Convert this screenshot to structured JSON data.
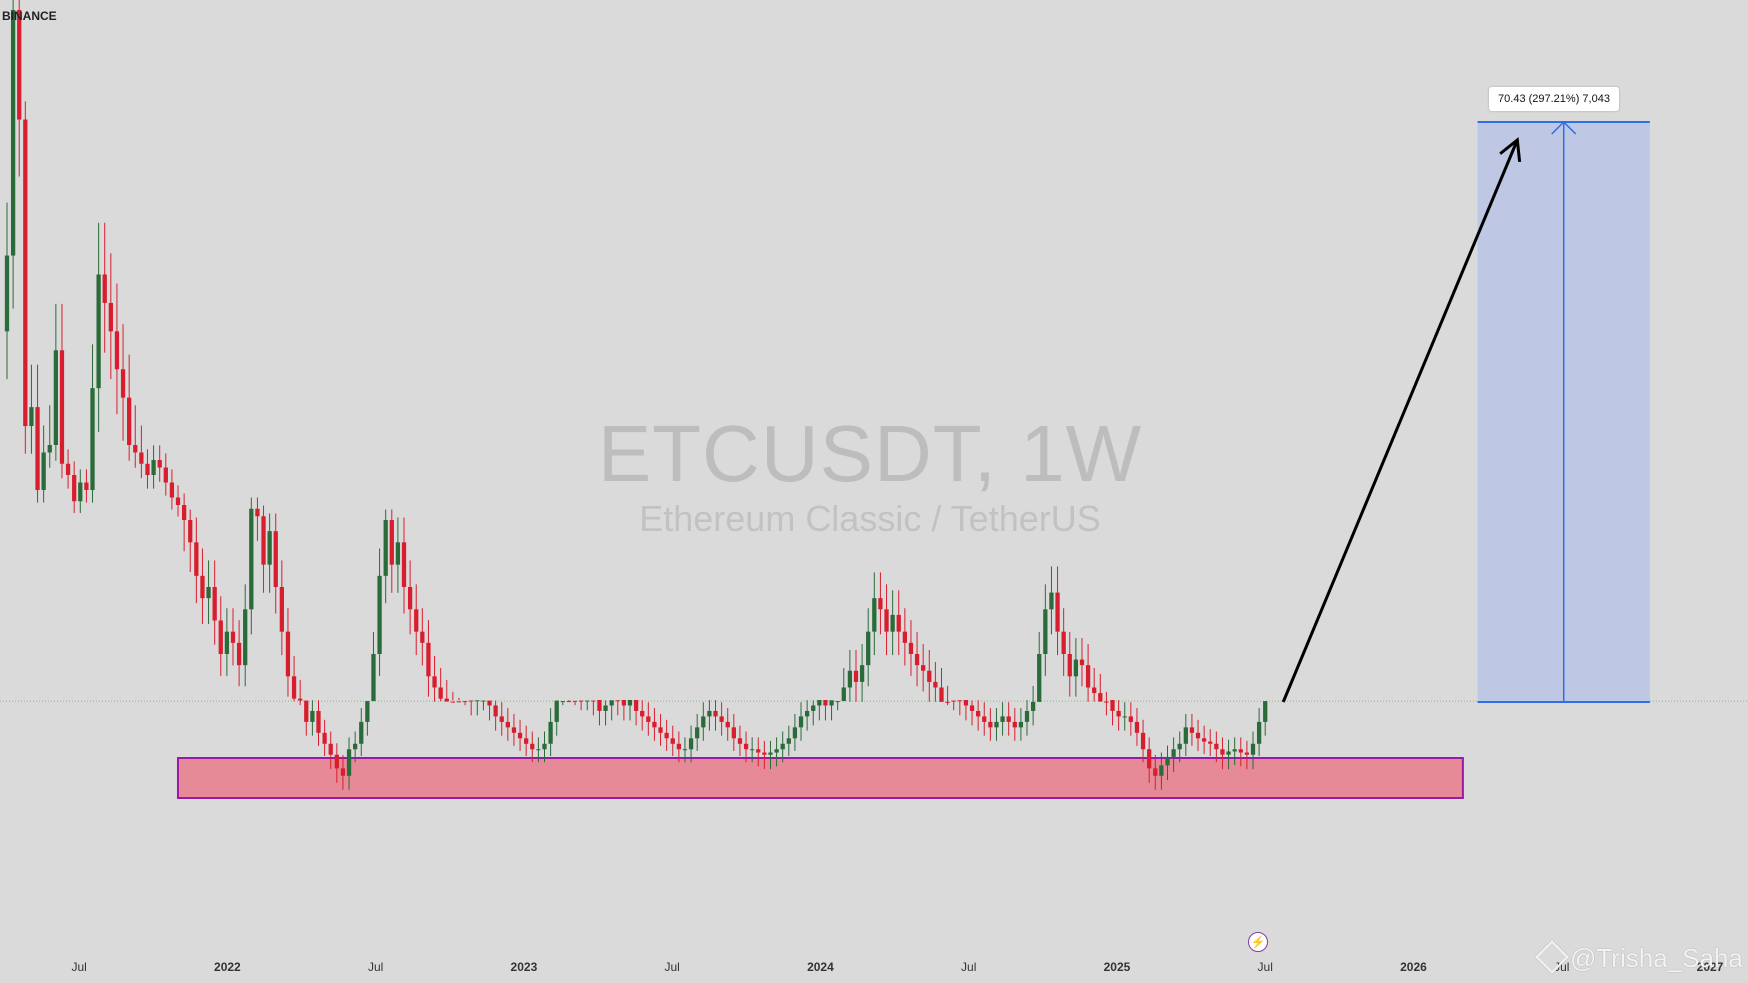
{
  "header": {
    "exchange": "BINANCE"
  },
  "watermark": {
    "title": "ETCUSDT, 1W",
    "subtitle": "Ethereum Classic / TetherUS"
  },
  "measure": {
    "label": "70.43 (297.21%) 7,043"
  },
  "signature": {
    "text": "@Trisha_Saha"
  },
  "icons": {
    "flash": "lightning-icon",
    "signature": "binance-logo-icon"
  },
  "colors": {
    "up": "#2a6b3a",
    "down": "#d81e2e",
    "support_fill": "#e68a98",
    "support_border": "#9a1aa8",
    "measure_fill": "#bec7e3",
    "measure_line": "#2f6ee8",
    "price_line": "#7fbf7f"
  },
  "x_axis": [
    {
      "label": "Jul",
      "year": false
    },
    {
      "label": "2022",
      "year": true
    },
    {
      "label": "Jul",
      "year": false
    },
    {
      "label": "2023",
      "year": true
    },
    {
      "label": "Jul",
      "year": false
    },
    {
      "label": "2024",
      "year": true
    },
    {
      "label": "Jul",
      "year": false
    },
    {
      "label": "2025",
      "year": true
    },
    {
      "label": "Jul",
      "year": false
    },
    {
      "label": "2026",
      "year": true
    },
    {
      "label": "Jul",
      "year": false
    },
    {
      "label": "2027",
      "year": true
    }
  ],
  "chart_data": {
    "type": "candlestick",
    "title": "ETCUSDT, 1W",
    "subtitle": "Ethereum Classic / TetherUS",
    "x_start": "2021-04",
    "x_end": "2027-01",
    "ylim": [
      0,
      200
    ],
    "support_zone": {
      "from": "2021-11",
      "to": "2026-03",
      "low": 12.0,
      "high": 14.7
    },
    "target": {
      "price": 94.1,
      "change": 70.43,
      "change_pct": "297.21%",
      "ticks": "7,043"
    },
    "projection_arrow": {
      "from": [
        "2025-07",
        23.7
      ],
      "to": [
        "2026-05",
        94.1
      ]
    },
    "closes": [
      80.0,
      135.0,
      95.0,
      62.0,
      64.0,
      48.0,
      58.0,
      60.0,
      70.0,
      55.0,
      52.0,
      45.0,
      50.0,
      48.0,
      66.0,
      78.0,
      75.0,
      72.0,
      68.0,
      65.0,
      60.0,
      58.0,
      55.0,
      52.0,
      56.0,
      54.0,
      50.0,
      46.0,
      44.0,
      40.0,
      38.0,
      35.0,
      33.0,
      34.0,
      31.0,
      28.0,
      30.0,
      29.0,
      27.0,
      32.0,
      43.0,
      41.0,
      36.0,
      39.0,
      34.0,
      30.0,
      26.0,
      24.0,
      21.0,
      18.0,
      19.0,
      17.0,
      16.0,
      15.0,
      14.0,
      13.5,
      15.5,
      16.0,
      18.0,
      22.0,
      28.0,
      35.0,
      40.0,
      36.0,
      38.0,
      34.0,
      32.0,
      30.0,
      29.0,
      26.0,
      25.0,
      24.0,
      23.0,
      22.5,
      22.0,
      21.0,
      20.0,
      20.5,
      21.0,
      19.5,
      18.5,
      18.0,
      17.5,
      17.0,
      16.5,
      16.0,
      15.5,
      15.5,
      16.0,
      18.0,
      21.0,
      22.0,
      21.5,
      21.0,
      20.5,
      21.0,
      20.0,
      19.0,
      19.5,
      20.5,
      20.0,
      19.5,
      20.0,
      19.0,
      18.5,
      18.0,
      17.5,
      17.0,
      16.5,
      16.0,
      15.5,
      15.5,
      16.5,
      17.5,
      18.5,
      19.0,
      18.5,
      18.0,
      17.5,
      16.5,
      16.0,
      15.5,
      15.5,
      15.2,
      15.0,
      15.2,
      15.5,
      16.0,
      16.5,
      17.5,
      18.5,
      19.0,
      19.5,
      20.0,
      19.5,
      20.5,
      22.0,
      25.0,
      26.5,
      25.5,
      27.0,
      30.0,
      33.0,
      32.0,
      30.0,
      31.5,
      30.0,
      29.0,
      28.0,
      27.0,
      26.5,
      25.5,
      25.0,
      23.5,
      21.0,
      20.5,
      20.0,
      19.5,
      19.0,
      18.5,
      18.0,
      17.5,
      18.0,
      18.5,
      18.0,
      17.5,
      18.0,
      19.0,
      23.5,
      28.0,
      32.0,
      33.5,
      30.0,
      28.0,
      26.0,
      27.5,
      27.0,
      25.0,
      24.5,
      23.0,
      20.0,
      19.0,
      18.5,
      18.5,
      18.0,
      17.0,
      15.5,
      14.0,
      13.5,
      14.2,
      14.8,
      15.5,
      16.0,
      17.5,
      17.0,
      16.5,
      16.2,
      16.0,
      15.5,
      15.0,
      15.3,
      15.5,
      15.2,
      15.0,
      16.0,
      18.0,
      22.0
    ],
    "notes": "Weekly candles; values estimated. Y axis unlabeled in the image."
  }
}
